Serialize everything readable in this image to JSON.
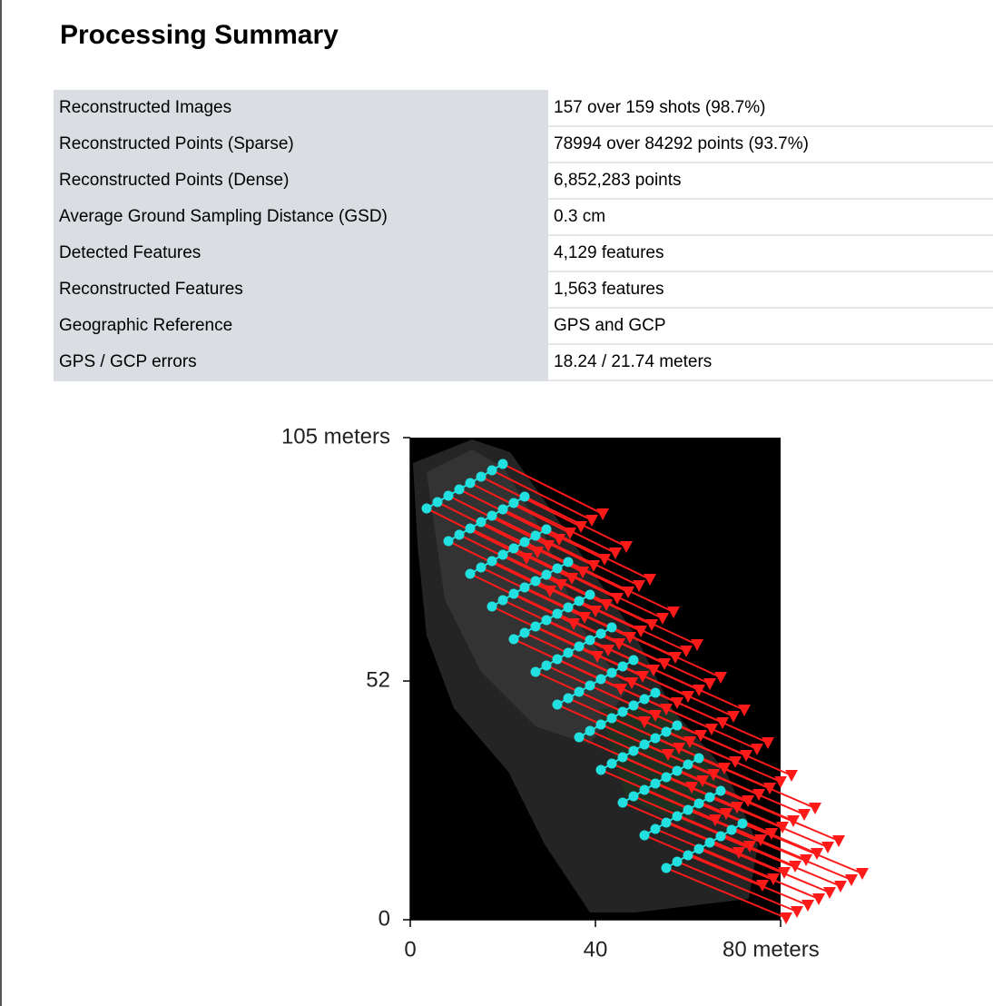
{
  "header": {
    "title": "Processing Summary"
  },
  "table": {
    "rows": [
      [
        "Reconstructed Images",
        "157 over 159 shots (98.7%)"
      ],
      [
        "Reconstructed Points (Sparse)",
        "78994 over 84292 points (93.7%)"
      ],
      [
        "Reconstructed Points (Dense)",
        "6,852,283 points"
      ],
      [
        "Average Ground Sampling Distance (GSD)",
        "0.3 cm"
      ],
      [
        "Detected Features",
        "4,129 features"
      ],
      [
        "Reconstructed Features",
        "1,563 features"
      ],
      [
        "Geographic Reference",
        "GPS and GCP"
      ],
      [
        "GPS / GCP errors",
        "18.24 / 21.74 meters"
      ]
    ]
  },
  "plot": {
    "xlim": [
      0,
      80
    ],
    "ylim": [
      0,
      105
    ],
    "xticks": [
      0,
      40,
      {
        "value": 80,
        "label": "80 meters"
      }
    ],
    "yticks": [
      0,
      52,
      {
        "value": 105,
        "label": "105 meters"
      }
    ]
  }
}
